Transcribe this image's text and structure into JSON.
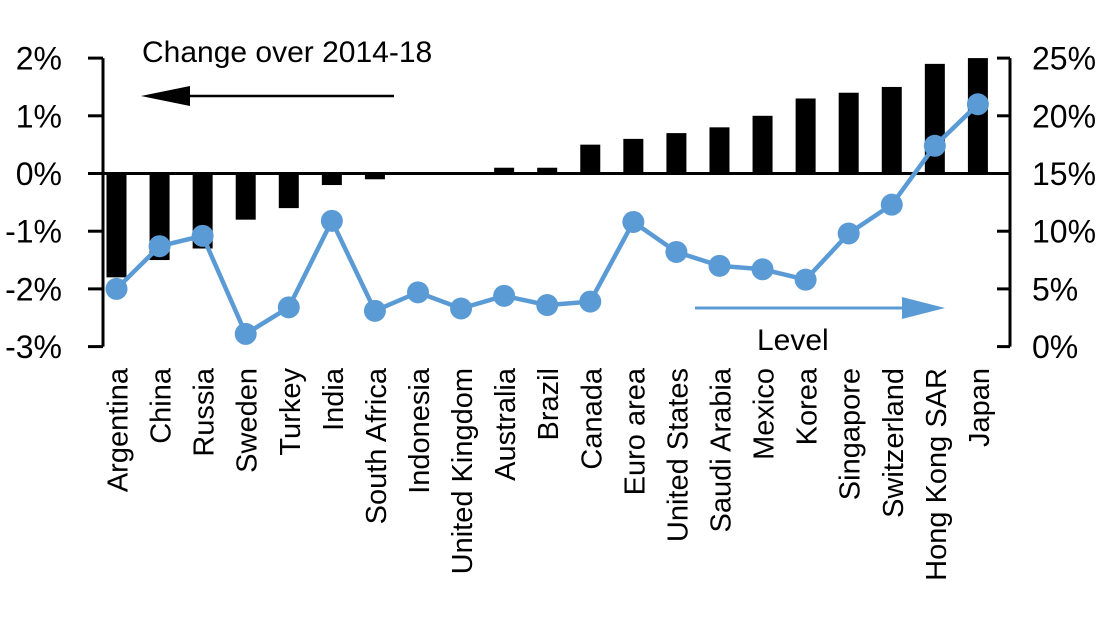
{
  "chart_data": {
    "type": "bar",
    "title": "",
    "categories": [
      "Argentina",
      "China",
      "Russia",
      "Sweden",
      "Turkey",
      "India",
      "South Africa",
      "Indonesia",
      "United Kingdom",
      "Australia",
      "Brazil",
      "Canada",
      "Euro area",
      "United States",
      "Saudi Arabia",
      "Mexico",
      "Korea",
      "Singapore",
      "Switzerland",
      "Hong Kong SAR",
      "Japan"
    ],
    "series": [
      {
        "name": "Change over 2014-18",
        "type": "bar",
        "axis": "left",
        "values": [
          -1.8,
          -1.5,
          -1.3,
          -0.8,
          -0.6,
          -0.2,
          -0.1,
          0.0,
          0.0,
          0.1,
          0.1,
          0.5,
          0.6,
          0.7,
          0.8,
          1.0,
          1.3,
          1.4,
          1.5,
          1.9,
          2.0
        ]
      },
      {
        "name": "Level",
        "type": "line",
        "axis": "right",
        "values": [
          5.0,
          8.7,
          9.6,
          1.1,
          3.4,
          10.9,
          3.1,
          4.7,
          3.3,
          4.4,
          3.6,
          3.9,
          10.8,
          8.2,
          7.0,
          6.7,
          5.8,
          9.8,
          12.3,
          17.4,
          21.0
        ]
      }
    ],
    "left_axis": {
      "ticks": [
        "2%",
        "1%",
        "0%",
        "-1%",
        "-2%",
        "-3%"
      ],
      "tick_values": [
        2,
        1,
        0,
        -1,
        -2,
        -3
      ],
      "min": -3,
      "max": 2
    },
    "right_axis": {
      "ticks": [
        "25%",
        "20%",
        "15%",
        "10%",
        "5%",
        "0%"
      ],
      "tick_values": [
        25,
        20,
        15,
        10,
        5,
        0
      ],
      "min": 0,
      "max": 25
    },
    "annotations": {
      "bar_label": "Change over 2014-18",
      "line_label": "Level"
    },
    "layout": {
      "grid": "off",
      "zero_line_left": 0,
      "zero_line_right": 15,
      "category_labels": "rotated-90"
    },
    "colors": {
      "bar": "#000000",
      "line": "#5B9BD5",
      "text": "#000000"
    }
  }
}
